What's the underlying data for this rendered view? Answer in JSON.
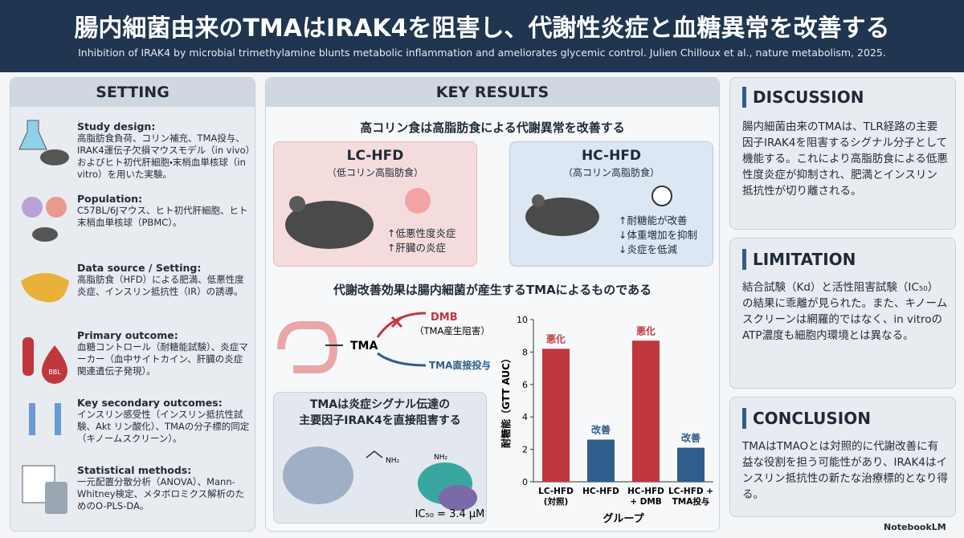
{
  "header": {
    "title": "腸内細菌由来のTMAはIRAK4を阻害し、代謝性炎症と血糖異常を改善する",
    "subtitle": "Inhibition of IRAK4 by microbial trimethylamine blunts metabolic inflammation and ameliorates glycemic control. Julien Chilloux et al., nature metabolism, 2025."
  },
  "setting": {
    "heading": "SETTING",
    "icon_label": "BBL",
    "items": [
      {
        "label": "Study design:",
        "text": "高脂肪食負荷、コリン補充、TMA投与、IRAK4運伝子欠損マウスモデル（in vivo）およびヒト初代肝細胞・末梢血単核球（in vitro）を用いた実験。"
      },
      {
        "label": "Population:",
        "text": "C57BL/6Jマウス、ヒト初代肝細胞、ヒト末梢血単核球（PBMC）。"
      },
      {
        "label": "Data source / Setting:",
        "text": "高脂肪食（HFD）による肥満、低悪性度炎症、インスリン抵抗性（IR）の誘導。"
      },
      {
        "label": "Primary outcome:",
        "text": "血糖コントロール（耐糖能試験）、炎症マーカー（血中サイトカイン、肝臓の炎症関連遺伝子発現）。"
      },
      {
        "label": "Key secondary outcomes:",
        "text": "インスリン感受性（インスリン抵抗性試験、Akt リン酸化）、TMAの分子標的同定（キノームスクリーン）。"
      },
      {
        "label": "Statistical methods:",
        "text": "一元配置分散分析（ANOVA）、Mann-Whitney検定、メタボロミクス解析のためのO-PLS-DA。"
      }
    ]
  },
  "key_results": {
    "heading": "KEY RESULTS",
    "section1": {
      "title": "高コリン食は高脂肪食による代謝異常を改善する",
      "panels": [
        {
          "name": "LC-HFD",
          "sub": "（低コリン高脂肪食）",
          "effects": [
            "↑低悪性度炎症",
            "↑肝臓の炎症"
          ]
        },
        {
          "name": "HC-HFD",
          "sub": "（高コリン高脂肪食）",
          "effects": [
            "↑耐糖能が改善",
            "↓体重増加を抑制",
            "↓炎症を低減"
          ]
        }
      ]
    },
    "section2": {
      "title": "代謝改善効果は腸内細菌が産生するTMAによるものである",
      "diagram": {
        "tma": "TMA",
        "dmb": "DMB",
        "dmb_note": "（TMA産生阻害）",
        "direct": "TMA直接投与"
      }
    },
    "section3": {
      "title_lines": [
        "TMAは炎症シグナル伝達の",
        "主要因子IRAK4を直接阻害する"
      ],
      "molecule_labels": [
        "NH₂",
        "NH₂"
      ],
      "ic50": "IC₅₀ = 3.4 μM"
    }
  },
  "chart_data": {
    "type": "bar",
    "ylabel": "耐糖能（GTT AUC）",
    "xlabel": "グループ",
    "categories": [
      [
        "LC-HFD",
        "(対照)"
      ],
      [
        "HC-HFD"
      ],
      [
        "HC-HFD",
        "+ DMB"
      ],
      [
        "LC-HFD +",
        "TMA投与"
      ]
    ],
    "values": [
      8.2,
      2.6,
      8.7,
      2.1
    ],
    "colors": [
      "#c0373d",
      "#2f5d8c",
      "#c0373d",
      "#2f5d8c"
    ],
    "annotations": [
      "悪化",
      "改善",
      "悪化",
      "改善"
    ],
    "annotation_colors": [
      "#c0373d",
      "#2f5d8c",
      "#c0373d",
      "#2f5d8c"
    ],
    "ylim": [
      0,
      10
    ],
    "yticks": [
      0,
      2,
      4,
      6,
      8,
      10
    ]
  },
  "discussion": {
    "heading": "DISCUSSION",
    "text": "腸内細菌由来のTMAは、TLR経路の主要因子IRAK4を阻害するシグナル分子として機能する。これにより高脂肪食による低悪性度炎症が抑制され、肥満とインスリン抵抗性が切り離される。"
  },
  "limitation": {
    "heading": "LIMITATION",
    "text": "結合試験（Kd）と活性阻害試験（IC₅₀）の結果に乖離が見られた。また、キノームスクリーンは網羅的ではなく、in vitroのATP濃度も細胞内環境とは異なる。"
  },
  "conclusion": {
    "heading": "CONCLUSION",
    "text": "TMAはTMAOとは対照的に代謝改善に有益な役割を担う可能性があり、IRAK4はインスリン抵抗性の新たな治療標的となり得る。"
  },
  "footer": "NotebookLM"
}
